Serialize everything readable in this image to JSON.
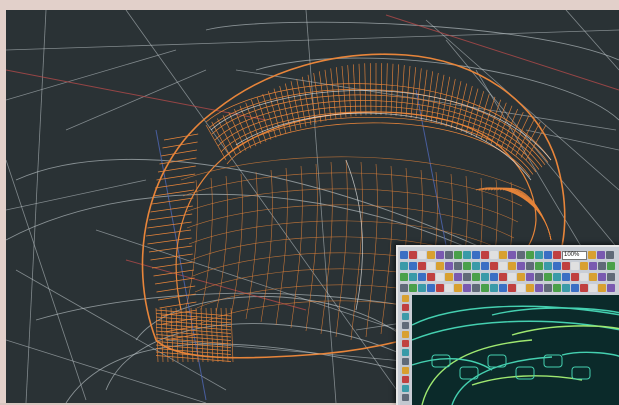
{
  "app": {
    "title": "",
    "viewport_background": "#2a3235",
    "frame_color": "#e2d0ca"
  },
  "model_view": {
    "description_colors": {
      "shell_wireframe": "#e8853a",
      "construction_lines": "#c8d0d4",
      "accent_lines": "#b24a4a",
      "guide_lines_blue": "#5068b8"
    }
  },
  "inset_window": {
    "zoom_value": "100%",
    "toolbar_rows": 4,
    "toolbar_icons": [
      "select-icon",
      "open-icon",
      "save-icon",
      "print-icon",
      "undo-icon",
      "redo-icon",
      "cut-icon",
      "copy-icon",
      "paste-icon",
      "zoom-in-icon",
      "zoom-out-icon",
      "pan-icon",
      "rotate-icon",
      "fit-icon",
      "grid-icon",
      "snap-icon",
      "layer-icon",
      "color-icon",
      "line-icon",
      "arc-icon",
      "circle-icon",
      "spline-icon",
      "surface-icon",
      "trim-icon"
    ],
    "view_colors": {
      "background": "#0b2a2a",
      "model_lines": "#45d0b0",
      "highlight": "#9fe870"
    }
  }
}
